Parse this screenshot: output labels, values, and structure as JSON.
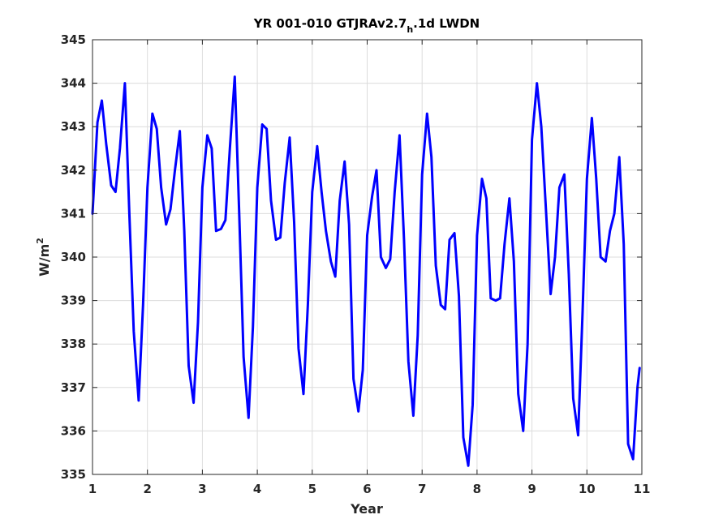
{
  "chart_data": {
    "type": "line",
    "title_main": "YR 001-010 GTJRAv2.7",
    "title_sub": "h",
    "title_tail": ".1d LWDN",
    "xlabel": "Year",
    "ylabel_main": "W/m",
    "ylabel_sup": "2",
    "xlim": [
      1,
      11
    ],
    "ylim": [
      335,
      345
    ],
    "xticks": [
      "1",
      "2",
      "3",
      "4",
      "5",
      "6",
      "7",
      "8",
      "9",
      "10",
      "11"
    ],
    "yticks": [
      "335",
      "336",
      "337",
      "338",
      "339",
      "340",
      "341",
      "342",
      "343",
      "344",
      "345"
    ],
    "grid": true,
    "line_color": "#0000ff",
    "series": [
      {
        "x": [
          1.0,
          1.09,
          1.17,
          1.25,
          1.34,
          1.42,
          1.5,
          1.59,
          1.67,
          1.75,
          1.84,
          1.92,
          2.0,
          2.09,
          2.17,
          2.25,
          2.34,
          2.42,
          2.5,
          2.59,
          2.67,
          2.75,
          2.84,
          2.92,
          3.0,
          3.09,
          3.17,
          3.25,
          3.34,
          3.42,
          3.5,
          3.59,
          3.67,
          3.75,
          3.84,
          3.92,
          4.0,
          4.09,
          4.17,
          4.25,
          4.34,
          4.42,
          4.5,
          4.59,
          4.67,
          4.75,
          4.84,
          4.92,
          5.0,
          5.09,
          5.17,
          5.25,
          5.34,
          5.42,
          5.5,
          5.59,
          5.67,
          5.75,
          5.84,
          5.92,
          6.0,
          6.09,
          6.17,
          6.25,
          6.34,
          6.42,
          6.5,
          6.59,
          6.67,
          6.75,
          6.84,
          6.92,
          7.0,
          7.09,
          7.17,
          7.25,
          7.34,
          7.42,
          7.5,
          7.59,
          7.67,
          7.75,
          7.84,
          7.92,
          8.0,
          8.09,
          8.17,
          8.25,
          8.34,
          8.42,
          8.5,
          8.59,
          8.67,
          8.75,
          8.84,
          8.92,
          9.0,
          9.09,
          9.17,
          9.25,
          9.34,
          9.42,
          9.5,
          9.59,
          9.67,
          9.75,
          9.84,
          9.92,
          10.0,
          10.09,
          10.17,
          10.25,
          10.34,
          10.42,
          10.5,
          10.59,
          10.67,
          10.75,
          10.84,
          10.92,
          10.96
        ],
        "y": [
          341.0,
          343.1,
          343.6,
          342.6,
          341.65,
          341.5,
          342.5,
          344.0,
          341.0,
          338.3,
          336.7,
          338.9,
          341.6,
          343.3,
          342.95,
          341.6,
          340.75,
          341.1,
          342.0,
          342.9,
          340.6,
          337.5,
          336.65,
          338.5,
          341.6,
          342.8,
          342.5,
          340.6,
          340.65,
          340.85,
          342.5,
          344.15,
          341.0,
          337.7,
          336.3,
          338.4,
          341.6,
          343.05,
          342.95,
          341.3,
          340.4,
          340.45,
          341.7,
          342.75,
          340.8,
          337.9,
          336.85,
          338.9,
          341.5,
          342.55,
          341.5,
          340.6,
          339.9,
          339.55,
          341.3,
          342.2,
          340.75,
          337.2,
          336.45,
          337.4,
          340.5,
          341.4,
          342.0,
          340.0,
          339.75,
          339.95,
          341.5,
          342.8,
          340.4,
          337.6,
          336.35,
          338.2,
          341.9,
          343.3,
          342.3,
          339.8,
          338.9,
          338.8,
          340.4,
          340.55,
          339.1,
          335.85,
          335.2,
          336.6,
          340.5,
          341.8,
          341.35,
          339.05,
          339.0,
          339.05,
          340.3,
          341.35,
          339.9,
          336.85,
          336.0,
          338.0,
          342.7,
          344.0,
          343.0,
          341.2,
          339.15,
          340.0,
          341.6,
          341.9,
          339.6,
          336.75,
          335.9,
          338.7,
          341.8,
          343.2,
          341.8,
          340.0,
          339.9,
          340.6,
          341.0,
          342.3,
          340.3,
          335.7,
          335.35,
          337.0,
          337.45
        ]
      }
    ]
  }
}
